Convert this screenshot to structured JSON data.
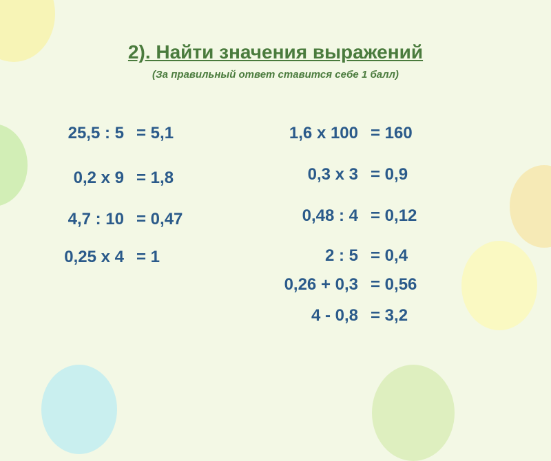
{
  "title": "2). Найти значения выражений",
  "subtitle": "(За правильный ответ ставится себе 1 балл)",
  "left": [
    {
      "expr": "25,5 : 5",
      "ans": "= 5,1"
    },
    {
      "expr": "0,2 х 9",
      "ans": "= 1,8"
    },
    {
      "expr": "4,7 : 10",
      "ans": "= 0,47"
    },
    {
      "expr": "0,25 х 4",
      "ans": "= 1"
    }
  ],
  "right": [
    {
      "expr": "1,6 х 100",
      "ans": "= 160"
    },
    {
      "expr": "0,3 х 3",
      "ans": "= 0,9"
    },
    {
      "expr": "0,48 : 4",
      "ans": "= 0,12"
    },
    {
      "expr": "2 : 5",
      "ans": "= 0,4"
    },
    {
      "expr": "0,26 + 0,3",
      "ans": "= 0,56"
    },
    {
      "expr": "4 - 0,8",
      "ans": "= 3,2"
    }
  ],
  "colors": {
    "background": "#f3f8e5",
    "heading": "#4a7b3d",
    "text": "#2a5a8a"
  }
}
